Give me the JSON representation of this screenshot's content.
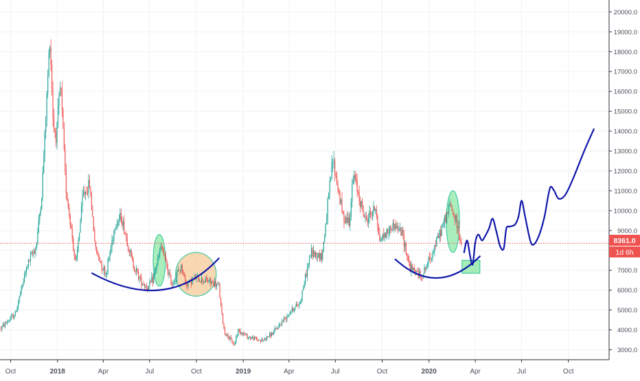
{
  "chart_data": {
    "type": "candlestick",
    "interval": "1D",
    "grid": true,
    "colors": {
      "up": "#26a69a",
      "down": "#ef5350",
      "price_line": "#ef5350",
      "annotation_curve": "#0e16a8",
      "highlight_green_fill": "#8ee8a5",
      "highlight_green_stroke": "#40c8a0",
      "highlight_orange_fill": "#f6c99a",
      "grid": "#eef1f5",
      "tick_text": "#4a4f59"
    },
    "y_axis": {
      "position": "right",
      "ylim": [
        2500,
        20600
      ],
      "ticks": [
        "3000.0",
        "4000.0",
        "5000.0",
        "6000.0",
        "7000.0",
        "8000.0",
        "9000.0",
        "10000.0",
        "11000.0",
        "12000.0",
        "13000.0",
        "14000.0",
        "15000.0",
        "16000.0",
        "17000.0",
        "18000.0",
        "19000.0",
        "20000.0"
      ]
    },
    "x_axis": {
      "xlim": [
        "2017-09-10",
        "2020-12-20"
      ],
      "ticks": [
        {
          "label": "Oct",
          "date": "2017-10-01",
          "bold": false
        },
        {
          "label": "2018",
          "date": "2018-01-01",
          "bold": true
        },
        {
          "label": "Apr",
          "date": "2018-04-01",
          "bold": false
        },
        {
          "label": "Jul",
          "date": "2018-07-01",
          "bold": false
        },
        {
          "label": "Oct",
          "date": "2018-10-01",
          "bold": false
        },
        {
          "label": "2019",
          "date": "2019-01-01",
          "bold": true
        },
        {
          "label": "Apr",
          "date": "2019-04-01",
          "bold": false
        },
        {
          "label": "Jul",
          "date": "2019-07-01",
          "bold": false
        },
        {
          "label": "Oct",
          "date": "2019-10-01",
          "bold": false
        },
        {
          "label": "2020",
          "date": "2020-01-01",
          "bold": true
        },
        {
          "label": "Apr",
          "date": "2020-04-01",
          "bold": false
        },
        {
          "label": "Jul",
          "date": "2020-07-01",
          "bold": false
        },
        {
          "label": "Oct",
          "date": "2020-10-01",
          "bold": false
        }
      ]
    },
    "price_key_points": [
      [
        "2017-09-12",
        4100
      ],
      [
        "2017-10-10",
        4800
      ],
      [
        "2017-11-03",
        7300
      ],
      [
        "2017-11-20",
        8200
      ],
      [
        "2017-12-01",
        10800
      ],
      [
        "2017-12-10",
        15200
      ],
      [
        "2017-12-17",
        18800
      ],
      [
        "2017-12-24",
        14200
      ],
      [
        "2017-12-30",
        13800
      ],
      [
        "2018-01-07",
        16400
      ],
      [
        "2018-01-17",
        11300
      ],
      [
        "2018-02-06",
        7200
      ],
      [
        "2018-02-20",
        10800
      ],
      [
        "2018-03-05",
        11300
      ],
      [
        "2018-03-17",
        8000
      ],
      [
        "2018-04-06",
        6800
      ],
      [
        "2018-04-24",
        9300
      ],
      [
        "2018-05-06",
        9700
      ],
      [
        "2018-05-28",
        7400
      ],
      [
        "2018-06-13",
        6500
      ],
      [
        "2018-06-28",
        6100
      ],
      [
        "2018-07-08",
        6600
      ],
      [
        "2018-07-24",
        8200
      ],
      [
        "2018-08-13",
        6300
      ],
      [
        "2018-09-02",
        7200
      ],
      [
        "2018-09-10",
        6300
      ],
      [
        "2018-09-30",
        6600
      ],
      [
        "2018-10-25",
        6450
      ],
      [
        "2018-11-14",
        6200
      ],
      [
        "2018-11-20",
        4700
      ],
      [
        "2018-11-25",
        3900
      ],
      [
        "2018-12-14",
        3250
      ],
      [
        "2018-12-22",
        4000
      ],
      [
        "2019-01-10",
        3650
      ],
      [
        "2019-02-07",
        3450
      ],
      [
        "2019-03-01",
        3850
      ],
      [
        "2019-04-02",
        4900
      ],
      [
        "2019-04-22",
        5350
      ],
      [
        "2019-05-14",
        7900
      ],
      [
        "2019-06-05",
        7700
      ],
      [
        "2019-06-26",
        12600
      ],
      [
        "2019-07-16",
        9700
      ],
      [
        "2019-07-28",
        9500
      ],
      [
        "2019-08-06",
        11800
      ],
      [
        "2019-08-29",
        9500
      ],
      [
        "2019-09-19",
        10200
      ],
      [
        "2019-09-25",
        8500
      ],
      [
        "2019-10-25",
        9300
      ],
      [
        "2019-11-10",
        8800
      ],
      [
        "2019-11-25",
        7100
      ],
      [
        "2019-12-18",
        6700
      ],
      [
        "2020-01-06",
        7800
      ],
      [
        "2020-01-20",
        8700
      ],
      [
        "2020-02-12",
        10300
      ],
      [
        "2020-02-25",
        9300
      ],
      [
        "2020-03-05",
        8361
      ]
    ],
    "candles": {
      "start": "2017-09-12",
      "end": "2020-03-05",
      "stride_days": 2,
      "last_close": 8361.0
    },
    "current_price": {
      "value": 8361.0,
      "label": "8361.0",
      "countdown": "1d 6h"
    },
    "annotations": {
      "bottom_arcs": [
        {
          "start": [
            "2018-03-10",
            6850
          ],
          "control": [
            "2018-08-05",
            4800
          ],
          "end": [
            "2018-11-14",
            7600
          ]
        },
        {
          "start": [
            "2019-10-27",
            7550
          ],
          "control": [
            "2020-01-18",
            5600
          ],
          "end": [
            "2020-04-10",
            7700
          ]
        }
      ],
      "green_ellipses": [
        {
          "center": [
            "2018-07-20",
            7500
          ],
          "rx_days": 12,
          "ry": 1300
        },
        {
          "center": [
            "2020-02-17",
            9450
          ],
          "rx_days": 13,
          "ry": 1550
        }
      ],
      "orange_ellipses": [
        {
          "center": [
            "2018-09-30",
            6800
          ],
          "rx_days": 40,
          "ry": 1100
        }
      ],
      "green_rectangles": [
        {
          "from": [
            "2020-03-06",
            7500
          ],
          "to": [
            "2020-04-10",
            6850
          ]
        }
      ],
      "forecast_path": [
        [
          "2020-03-10",
          7900
        ],
        [
          "2020-03-16",
          8500
        ],
        [
          "2020-03-22",
          7700
        ],
        [
          "2020-03-27",
          7300
        ],
        [
          "2020-04-01",
          8400
        ],
        [
          "2020-04-07",
          8800
        ],
        [
          "2020-04-14",
          8500
        ],
        [
          "2020-04-21",
          8750
        ],
        [
          "2020-04-28",
          9100
        ],
        [
          "2020-05-05",
          9600
        ],
        [
          "2020-05-12",
          9000
        ],
        [
          "2020-05-20",
          8200
        ],
        [
          "2020-05-27",
          8100
        ],
        [
          "2020-06-01",
          9100
        ],
        [
          "2020-06-08",
          9200
        ],
        [
          "2020-06-18",
          9300
        ],
        [
          "2020-06-25",
          9700
        ],
        [
          "2020-07-01",
          10500
        ],
        [
          "2020-07-08",
          9700
        ],
        [
          "2020-07-18",
          8500
        ],
        [
          "2020-07-25",
          8300
        ],
        [
          "2020-08-05",
          8800
        ],
        [
          "2020-08-15",
          9700
        ],
        [
          "2020-08-22",
          10700
        ],
        [
          "2020-08-27",
          11200
        ],
        [
          "2020-09-03",
          11000
        ],
        [
          "2020-09-12",
          10600
        ],
        [
          "2020-09-25",
          10800
        ],
        [
          "2020-10-10",
          11600
        ],
        [
          "2020-11-01",
          13000
        ],
        [
          "2020-11-20",
          14100
        ]
      ]
    }
  }
}
